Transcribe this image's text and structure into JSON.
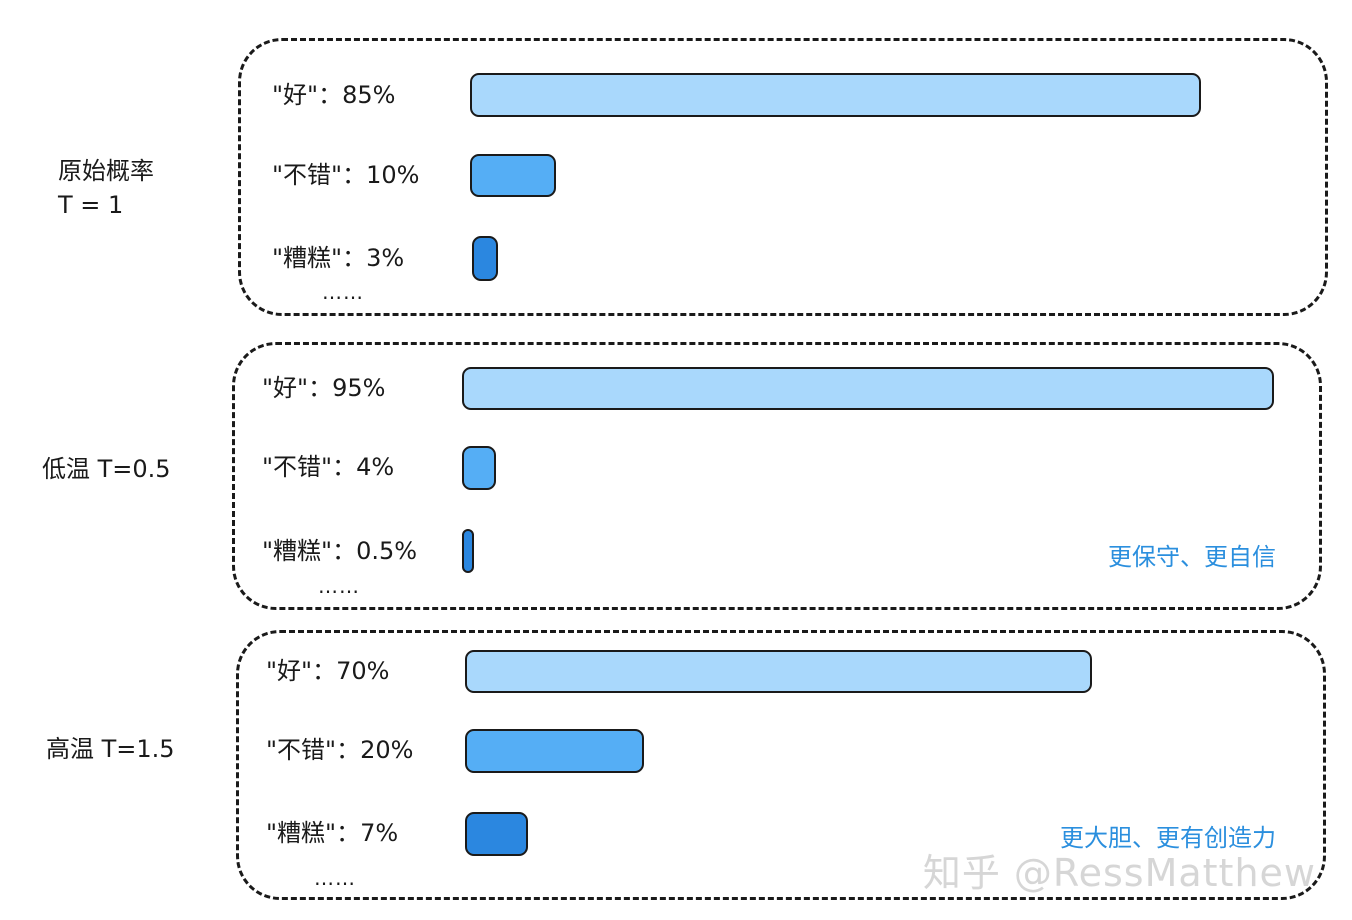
{
  "chart_data": [
    {
      "type": "bar",
      "group_label": "原始概率\nT = 1",
      "categories": [
        "好",
        "不错",
        "糟糕"
      ],
      "values": [
        85,
        10,
        3
      ],
      "labels": [
        "\"好\"：85%",
        "\"不错\"：10%",
        "\"糟糕\"：3%"
      ],
      "more": "……",
      "note": ""
    },
    {
      "type": "bar",
      "group_label": "低温 T=0.5",
      "categories": [
        "好",
        "不错",
        "糟糕"
      ],
      "values": [
        95,
        4,
        0.5
      ],
      "labels": [
        "\"好\"：95%",
        "\"不错\"：4%",
        "\"糟糕\"：0.5%"
      ],
      "more": "……",
      "note": "更保守、更自信"
    },
    {
      "type": "bar",
      "group_label": "高温 T=1.5",
      "categories": [
        "好",
        "不错",
        "糟糕"
      ],
      "values": [
        70,
        20,
        7
      ],
      "labels": [
        "\"好\"：70%",
        "\"不错\"：20%",
        "\"糟糕\"：7%"
      ],
      "more": "……",
      "note": "更大胆、更有创造力"
    }
  ],
  "colors": {
    "bar_1": "#a9d8fc",
    "bar_2": "#55aef5",
    "bar_3": "#2b87e0",
    "note": "#2b8fde"
  },
  "watermark": "知乎 @RessMatthew"
}
